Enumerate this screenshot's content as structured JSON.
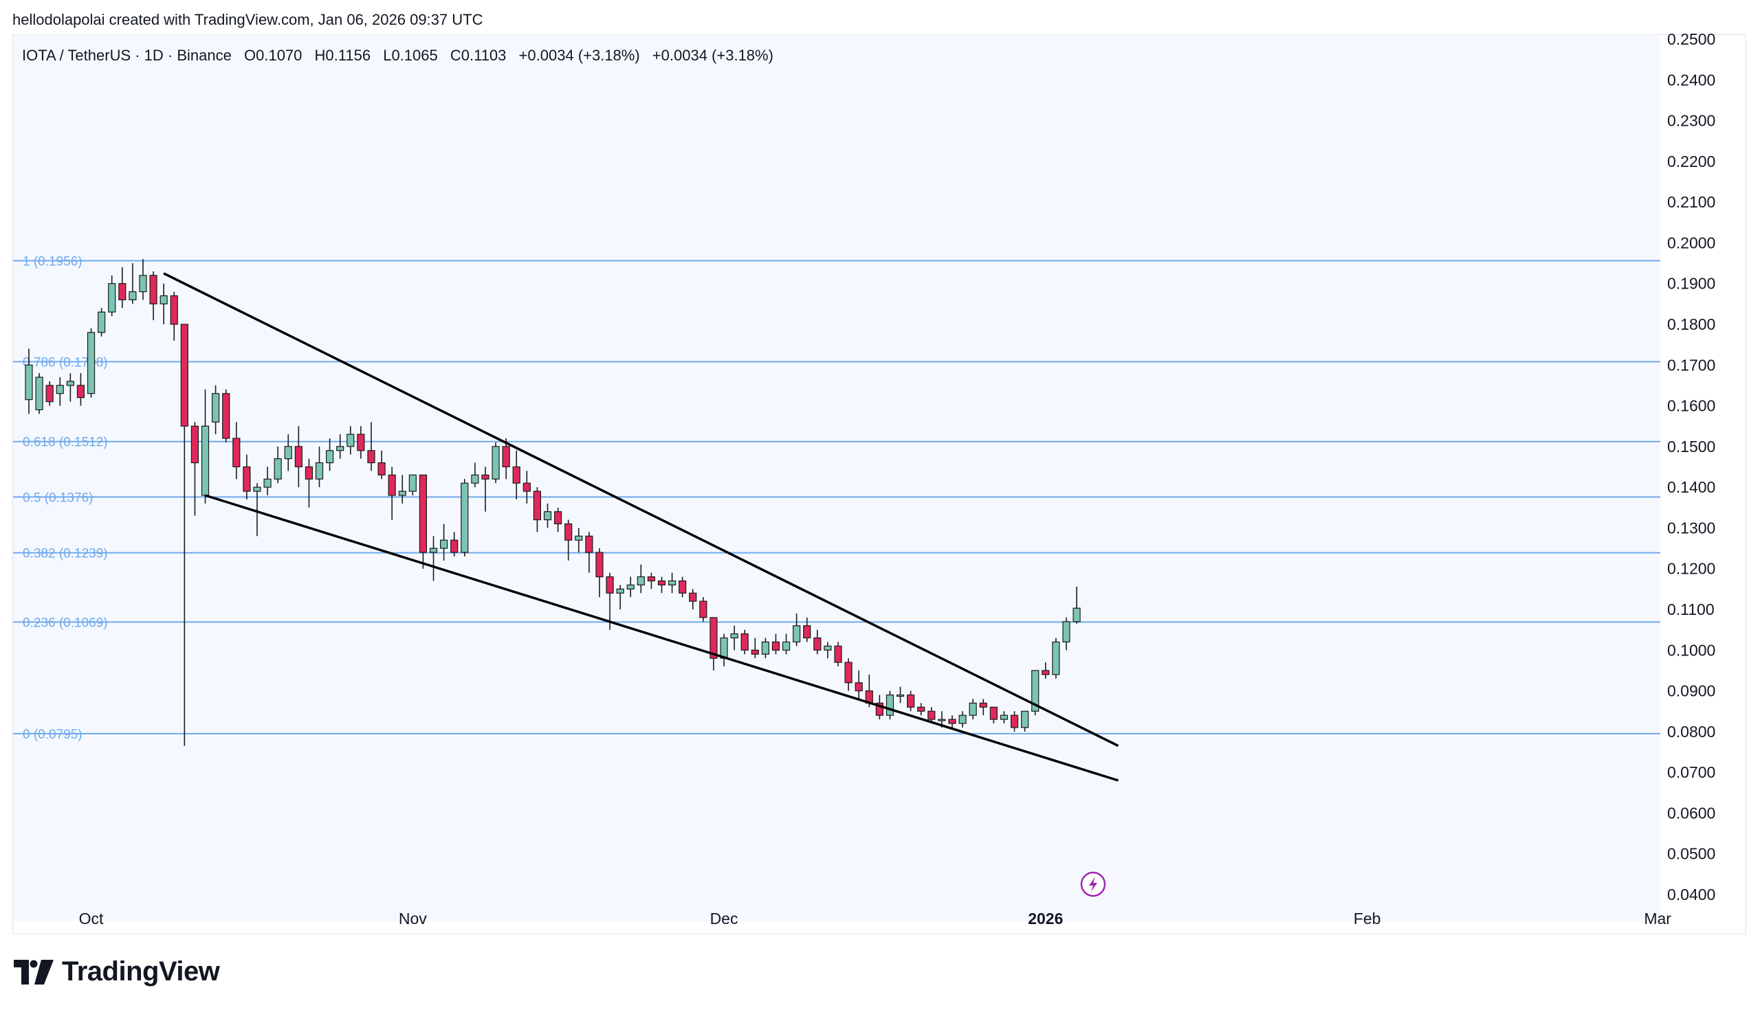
{
  "caption": "hellodolapolai created with TradingView.com, Jan 06, 2026 09:37 UTC",
  "legend": {
    "symbol": "IOTA / TetherUS · 1D · Binance",
    "open": "O0.1070",
    "high": "H0.1156",
    "low": "L0.1065",
    "close": "C0.1103",
    "change1": "+0.0034 (+3.18%)",
    "change2": "+0.0034 (+3.18%)"
  },
  "brand": {
    "name": "TradingView"
  },
  "colors": {
    "up": "#7cc4b3",
    "down": "#e0285a",
    "fib": "#6fa8ec",
    "trend": "#000000",
    "background": "#f5f9ff"
  },
  "chart_data": {
    "type": "candlestick",
    "ylim": [
      0.04,
      0.25
    ],
    "y_ticks": [
      "0.2500",
      "0.2400",
      "0.2300",
      "0.2200",
      "0.2100",
      "0.2000",
      "0.1900",
      "0.1800",
      "0.1700",
      "0.1600",
      "0.1500",
      "0.1400",
      "0.1300",
      "0.1200",
      "0.1100",
      "0.1000",
      "0.0900",
      "0.0800",
      "0.0700",
      "0.0600",
      "0.0500",
      "0.0400"
    ],
    "x_ticks": [
      {
        "label": "Oct",
        "index": 6,
        "bold": false
      },
      {
        "label": "Nov",
        "index": 37,
        "bold": false
      },
      {
        "label": "Dec",
        "index": 67,
        "bold": false
      },
      {
        "label": "2026",
        "index": 98,
        "bold": true
      },
      {
        "label": "Feb",
        "index": 129,
        "bold": false
      },
      {
        "label": "Mar",
        "index": 157,
        "bold": false
      }
    ],
    "fib_levels": [
      {
        "label": "1 (0.1956)",
        "value": 0.1956
      },
      {
        "label": "0.786 (0.1708)",
        "value": 0.1708
      },
      {
        "label": "0.618 (0.1512)",
        "value": 0.1512
      },
      {
        "label": "0.5 (0.1376)",
        "value": 0.1376
      },
      {
        "label": "0.382 (0.1239)",
        "value": 0.1239
      },
      {
        "label": "0.236 (0.1069)",
        "value": 0.1069
      },
      {
        "label": "0 (0.0795)",
        "value": 0.0795
      }
    ],
    "trendlines": [
      {
        "name": "upper",
        "x1": 13,
        "y1": 0.1925,
        "x2": 105,
        "y2": 0.0765
      },
      {
        "name": "lower",
        "x1": 17,
        "y1": 0.138,
        "x2": 105,
        "y2": 0.068
      }
    ],
    "candles": [
      [
        0.1615,
        0.17,
        0.158,
        0.174
      ],
      [
        0.159,
        0.167,
        0.158,
        0.168
      ],
      [
        0.165,
        0.161,
        0.16,
        0.166
      ],
      [
        0.163,
        0.165,
        0.16,
        0.167
      ],
      [
        0.165,
        0.166,
        0.161,
        0.168
      ],
      [
        0.165,
        0.162,
        0.16,
        0.168
      ],
      [
        0.163,
        0.178,
        0.162,
        0.179
      ],
      [
        0.178,
        0.183,
        0.177,
        0.184
      ],
      [
        0.183,
        0.19,
        0.182,
        0.192
      ],
      [
        0.19,
        0.186,
        0.184,
        0.194
      ],
      [
        0.186,
        0.188,
        0.185,
        0.195
      ],
      [
        0.188,
        0.192,
        0.186,
        0.196
      ],
      [
        0.192,
        0.185,
        0.181,
        0.193
      ],
      [
        0.185,
        0.187,
        0.18,
        0.19
      ],
      [
        0.187,
        0.18,
        0.176,
        0.188
      ],
      [
        0.18,
        0.155,
        0.0765,
        0.18
      ],
      [
        0.155,
        0.146,
        0.133,
        0.156
      ],
      [
        0.138,
        0.155,
        0.136,
        0.164
      ],
      [
        0.156,
        0.163,
        0.153,
        0.165
      ],
      [
        0.163,
        0.152,
        0.151,
        0.164
      ],
      [
        0.152,
        0.145,
        0.142,
        0.156
      ],
      [
        0.145,
        0.139,
        0.137,
        0.148
      ],
      [
        0.139,
        0.14,
        0.128,
        0.141
      ],
      [
        0.14,
        0.142,
        0.138,
        0.145
      ],
      [
        0.142,
        0.147,
        0.141,
        0.15
      ],
      [
        0.147,
        0.15,
        0.144,
        0.153
      ],
      [
        0.15,
        0.145,
        0.14,
        0.155
      ],
      [
        0.145,
        0.142,
        0.135,
        0.147
      ],
      [
        0.142,
        0.146,
        0.14,
        0.15
      ],
      [
        0.146,
        0.149,
        0.144,
        0.152
      ],
      [
        0.149,
        0.15,
        0.147,
        0.153
      ],
      [
        0.15,
        0.153,
        0.148,
        0.155
      ],
      [
        0.153,
        0.149,
        0.147,
        0.155
      ],
      [
        0.149,
        0.146,
        0.144,
        0.156
      ],
      [
        0.146,
        0.143,
        0.142,
        0.149
      ],
      [
        0.143,
        0.138,
        0.132,
        0.145
      ],
      [
        0.138,
        0.139,
        0.136,
        0.143
      ],
      [
        0.139,
        0.143,
        0.138,
        0.143
      ],
      [
        0.143,
        0.124,
        0.12,
        0.143
      ],
      [
        0.124,
        0.125,
        0.117,
        0.128
      ],
      [
        0.125,
        0.127,
        0.122,
        0.131
      ],
      [
        0.127,
        0.124,
        0.123,
        0.129
      ],
      [
        0.124,
        0.141,
        0.123,
        0.142
      ],
      [
        0.141,
        0.143,
        0.14,
        0.146
      ],
      [
        0.143,
        0.142,
        0.134,
        0.145
      ],
      [
        0.142,
        0.15,
        0.141,
        0.151
      ],
      [
        0.15,
        0.145,
        0.142,
        0.152
      ],
      [
        0.145,
        0.141,
        0.137,
        0.149
      ],
      [
        0.141,
        0.139,
        0.136,
        0.144
      ],
      [
        0.139,
        0.132,
        0.129,
        0.14
      ],
      [
        0.132,
        0.134,
        0.13,
        0.136
      ],
      [
        0.134,
        0.131,
        0.129,
        0.135
      ],
      [
        0.131,
        0.127,
        0.122,
        0.132
      ],
      [
        0.127,
        0.128,
        0.124,
        0.13
      ],
      [
        0.128,
        0.124,
        0.119,
        0.129
      ],
      [
        0.124,
        0.118,
        0.113,
        0.125
      ],
      [
        0.118,
        0.114,
        0.105,
        0.119
      ],
      [
        0.114,
        0.115,
        0.11,
        0.116
      ],
      [
        0.115,
        0.116,
        0.113,
        0.118
      ],
      [
        0.116,
        0.118,
        0.114,
        0.121
      ],
      [
        0.118,
        0.117,
        0.115,
        0.119
      ],
      [
        0.117,
        0.116,
        0.114,
        0.118
      ],
      [
        0.116,
        0.117,
        0.114,
        0.119
      ],
      [
        0.117,
        0.114,
        0.113,
        0.118
      ],
      [
        0.114,
        0.112,
        0.11,
        0.115
      ],
      [
        0.112,
        0.108,
        0.107,
        0.113
      ],
      [
        0.108,
        0.098,
        0.095,
        0.108
      ],
      [
        0.098,
        0.103,
        0.096,
        0.104
      ],
      [
        0.103,
        0.104,
        0.1,
        0.106
      ],
      [
        0.104,
        0.1,
        0.099,
        0.105
      ],
      [
        0.1,
        0.099,
        0.098,
        0.103
      ],
      [
        0.099,
        0.102,
        0.098,
        0.103
      ],
      [
        0.102,
        0.1,
        0.099,
        0.104
      ],
      [
        0.1,
        0.102,
        0.099,
        0.104
      ],
      [
        0.102,
        0.106,
        0.101,
        0.109
      ],
      [
        0.106,
        0.103,
        0.102,
        0.108
      ],
      [
        0.103,
        0.1,
        0.099,
        0.105
      ],
      [
        0.1,
        0.101,
        0.098,
        0.102
      ],
      [
        0.101,
        0.097,
        0.096,
        0.102
      ],
      [
        0.097,
        0.092,
        0.09,
        0.098
      ],
      [
        0.092,
        0.09,
        0.088,
        0.095
      ],
      [
        0.09,
        0.087,
        0.086,
        0.094
      ],
      [
        0.087,
        0.084,
        0.083,
        0.089
      ],
      [
        0.084,
        0.089,
        0.083,
        0.09
      ],
      [
        0.089,
        0.089,
        0.087,
        0.091
      ],
      [
        0.089,
        0.086,
        0.085,
        0.09
      ],
      [
        0.086,
        0.085,
        0.084,
        0.087
      ],
      [
        0.085,
        0.083,
        0.082,
        0.086
      ],
      [
        0.083,
        0.083,
        0.081,
        0.085
      ],
      [
        0.083,
        0.082,
        0.081,
        0.084
      ],
      [
        0.082,
        0.084,
        0.081,
        0.085
      ],
      [
        0.084,
        0.087,
        0.083,
        0.088
      ],
      [
        0.087,
        0.086,
        0.084,
        0.088
      ],
      [
        0.086,
        0.083,
        0.082,
        0.086
      ],
      [
        0.083,
        0.084,
        0.082,
        0.085
      ],
      [
        0.084,
        0.081,
        0.08,
        0.085
      ],
      [
        0.081,
        0.085,
        0.08,
        0.085
      ],
      [
        0.085,
        0.095,
        0.084,
        0.095
      ],
      [
        0.095,
        0.094,
        0.093,
        0.097
      ],
      [
        0.094,
        0.102,
        0.093,
        0.103
      ],
      [
        0.102,
        0.107,
        0.1,
        0.108
      ],
      [
        0.107,
        0.1103,
        0.1065,
        0.1156
      ]
    ]
  }
}
